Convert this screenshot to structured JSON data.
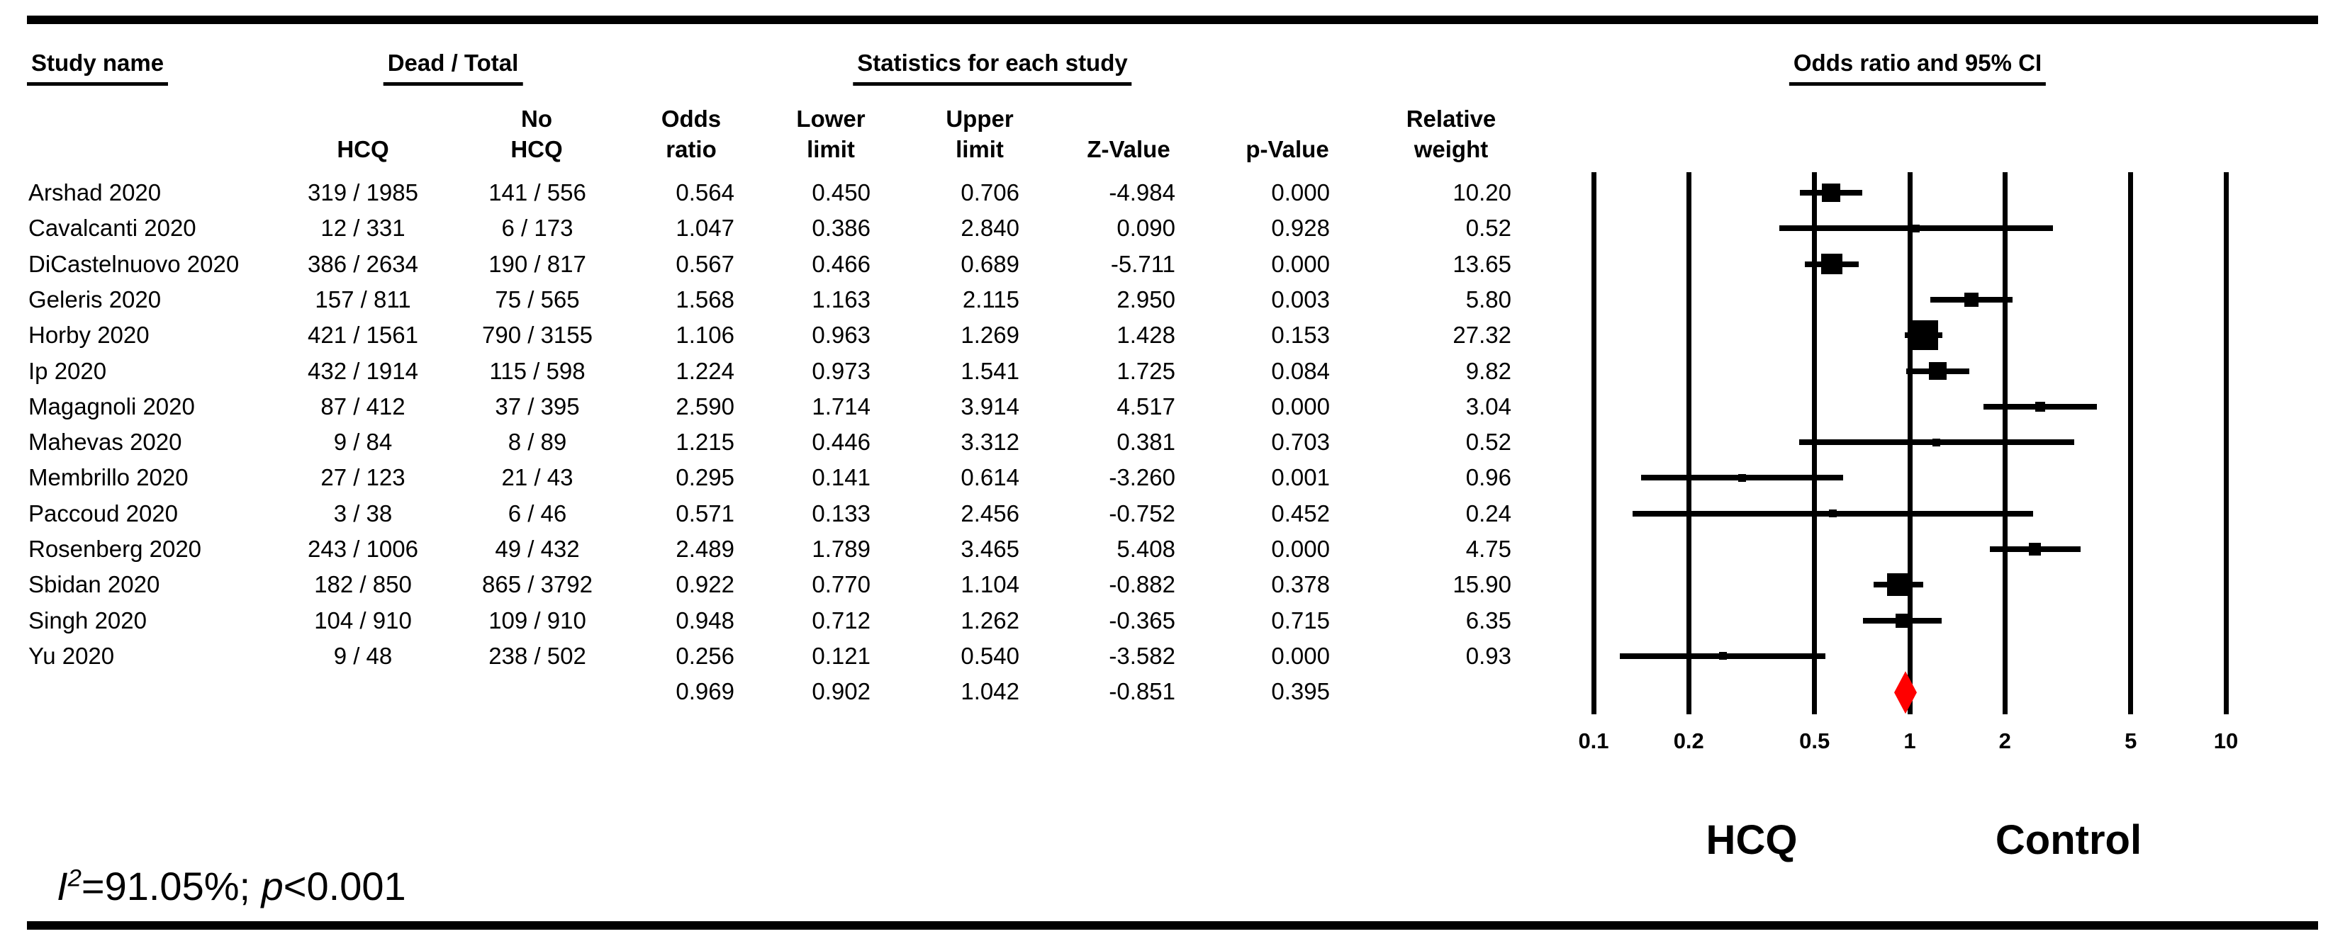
{
  "table": {
    "group_headers": {
      "study_name": "Study name",
      "dead_total": "Dead / Total",
      "statistics": "Statistics for each study",
      "or_ci": "Odds ratio and 95% CI"
    },
    "columns": [
      {
        "key": "study",
        "header": ""
      },
      {
        "key": "hcq",
        "header": "HCQ"
      },
      {
        "key": "no_hcq",
        "header": "No\nHCQ"
      },
      {
        "key": "odds_ratio",
        "header": "Odds\nratio"
      },
      {
        "key": "lower",
        "header": "Lower\nlimit"
      },
      {
        "key": "upper",
        "header": "Upper\nlimit"
      },
      {
        "key": "z",
        "header": "Z-Value"
      },
      {
        "key": "p",
        "header": "p-Value"
      },
      {
        "key": "weight",
        "header": "Relative\nweight"
      }
    ],
    "rows": [
      {
        "study": "Arshad 2020",
        "hcq": "319 / 1985",
        "no_hcq": "141 / 556",
        "odds_ratio": "0.564",
        "lower": "0.450",
        "upper": "0.706",
        "z": "-4.984",
        "p": "0.000",
        "weight": "10.20"
      },
      {
        "study": "Cavalcanti 2020",
        "hcq": "12 / 331",
        "no_hcq": "6 / 173",
        "odds_ratio": "1.047",
        "lower": "0.386",
        "upper": "2.840",
        "z": "0.090",
        "p": "0.928",
        "weight": "0.52"
      },
      {
        "study": "DiCastelnuovo 2020",
        "hcq": "386 / 2634",
        "no_hcq": "190 / 817",
        "odds_ratio": "0.567",
        "lower": "0.466",
        "upper": "0.689",
        "z": "-5.711",
        "p": "0.000",
        "weight": "13.65"
      },
      {
        "study": "Geleris 2020",
        "hcq": "157 / 811",
        "no_hcq": "75 / 565",
        "odds_ratio": "1.568",
        "lower": "1.163",
        "upper": "2.115",
        "z": "2.950",
        "p": "0.003",
        "weight": "5.80"
      },
      {
        "study": "Horby 2020",
        "hcq": "421 / 1561",
        "no_hcq": "790 / 3155",
        "odds_ratio": "1.106",
        "lower": "0.963",
        "upper": "1.269",
        "z": "1.428",
        "p": "0.153",
        "weight": "27.32"
      },
      {
        "study": "Ip 2020",
        "hcq": "432 / 1914",
        "no_hcq": "115 / 598",
        "odds_ratio": "1.224",
        "lower": "0.973",
        "upper": "1.541",
        "z": "1.725",
        "p": "0.084",
        "weight": "9.82"
      },
      {
        "study": "Magagnoli 2020",
        "hcq": "87 / 412",
        "no_hcq": "37 / 395",
        "odds_ratio": "2.590",
        "lower": "1.714",
        "upper": "3.914",
        "z": "4.517",
        "p": "0.000",
        "weight": "3.04"
      },
      {
        "study": "Mahevas 2020",
        "hcq": "9 / 84",
        "no_hcq": "8 / 89",
        "odds_ratio": "1.215",
        "lower": "0.446",
        "upper": "3.312",
        "z": "0.381",
        "p": "0.703",
        "weight": "0.52"
      },
      {
        "study": "Membrillo 2020",
        "hcq": "27 / 123",
        "no_hcq": "21 / 43",
        "odds_ratio": "0.295",
        "lower": "0.141",
        "upper": "0.614",
        "z": "-3.260",
        "p": "0.001",
        "weight": "0.96"
      },
      {
        "study": "Paccoud 2020",
        "hcq": "3 / 38",
        "no_hcq": "6 / 46",
        "odds_ratio": "0.571",
        "lower": "0.133",
        "upper": "2.456",
        "z": "-0.752",
        "p": "0.452",
        "weight": "0.24"
      },
      {
        "study": "Rosenberg 2020",
        "hcq": "243 / 1006",
        "no_hcq": "49 / 432",
        "odds_ratio": "2.489",
        "lower": "1.789",
        "upper": "3.465",
        "z": "5.408",
        "p": "0.000",
        "weight": "4.75"
      },
      {
        "study": "Sbidan 2020",
        "hcq": "182 / 850",
        "no_hcq": "865 / 3792",
        "odds_ratio": "0.922",
        "lower": "0.770",
        "upper": "1.104",
        "z": "-0.882",
        "p": "0.378",
        "weight": "15.90"
      },
      {
        "study": "Singh 2020",
        "hcq": "104 / 910",
        "no_hcq": "109 / 910",
        "odds_ratio": "0.948",
        "lower": "0.712",
        "upper": "1.262",
        "z": "-0.365",
        "p": "0.715",
        "weight": "6.35"
      },
      {
        "study": "Yu 2020",
        "hcq": "9 / 48",
        "no_hcq": "238 / 502",
        "odds_ratio": "0.256",
        "lower": "0.121",
        "upper": "0.540",
        "z": "-3.582",
        "p": "0.000",
        "weight": "0.93"
      }
    ],
    "summary_row": {
      "study": "",
      "hcq": "",
      "no_hcq": "",
      "odds_ratio": "0.969",
      "lower": "0.902",
      "upper": "1.042",
      "z": "-0.851",
      "p": "0.395",
      "weight": ""
    }
  },
  "chart_data": {
    "type": "scatter",
    "subtype": "forest-plot",
    "title": "Odds ratio and 95% CI",
    "x_scale": "log",
    "xlim": [
      0.1,
      10
    ],
    "x_ticks": [
      0.1,
      0.2,
      0.5,
      1,
      2,
      5,
      10
    ],
    "x_tick_labels": [
      "0.1",
      "0.2",
      "0.5",
      "1",
      "2",
      "5",
      "10"
    ],
    "grid": "vertical-lines-at-ticks",
    "marker_color": "#000000",
    "summary_color": "#ff0000",
    "left_group_label": "HCQ",
    "right_group_label": "Control",
    "points": [
      {
        "study": "Arshad 2020",
        "or": 0.564,
        "lower": 0.45,
        "upper": 0.706,
        "weight": 10.2
      },
      {
        "study": "Cavalcanti 2020",
        "or": 1.047,
        "lower": 0.386,
        "upper": 2.84,
        "weight": 0.52
      },
      {
        "study": "DiCastelnuovo 2020",
        "or": 0.567,
        "lower": 0.466,
        "upper": 0.689,
        "weight": 13.65
      },
      {
        "study": "Geleris 2020",
        "or": 1.568,
        "lower": 1.163,
        "upper": 2.115,
        "weight": 5.8
      },
      {
        "study": "Horby 2020",
        "or": 1.106,
        "lower": 0.963,
        "upper": 1.269,
        "weight": 27.32
      },
      {
        "study": "Ip 2020",
        "or": 1.224,
        "lower": 0.973,
        "upper": 1.541,
        "weight": 9.82
      },
      {
        "study": "Magagnoli 2020",
        "or": 2.59,
        "lower": 1.714,
        "upper": 3.914,
        "weight": 3.04
      },
      {
        "study": "Mahevas 2020",
        "or": 1.215,
        "lower": 0.446,
        "upper": 3.312,
        "weight": 0.52
      },
      {
        "study": "Membrillo 2020",
        "or": 0.295,
        "lower": 0.141,
        "upper": 0.614,
        "weight": 0.96
      },
      {
        "study": "Paccoud 2020",
        "or": 0.571,
        "lower": 0.133,
        "upper": 2.456,
        "weight": 0.24
      },
      {
        "study": "Rosenberg 2020",
        "or": 2.489,
        "lower": 1.789,
        "upper": 3.465,
        "weight": 4.75
      },
      {
        "study": "Sbidan 2020",
        "or": 0.922,
        "lower": 0.77,
        "upper": 1.104,
        "weight": 15.9
      },
      {
        "study": "Singh 2020",
        "or": 0.948,
        "lower": 0.712,
        "upper": 1.262,
        "weight": 6.35
      },
      {
        "study": "Yu 2020",
        "or": 0.256,
        "lower": 0.121,
        "upper": 0.54,
        "weight": 0.93
      }
    ],
    "summary": {
      "or": 0.969,
      "lower": 0.902,
      "upper": 1.042,
      "z": -0.851,
      "p": 0.395
    }
  },
  "footer": {
    "i_symbol": "I",
    "i_exponent": "2",
    "mid_text": "=91.05%; ",
    "p_symbol": "p",
    "tail_text": "<0.001"
  }
}
